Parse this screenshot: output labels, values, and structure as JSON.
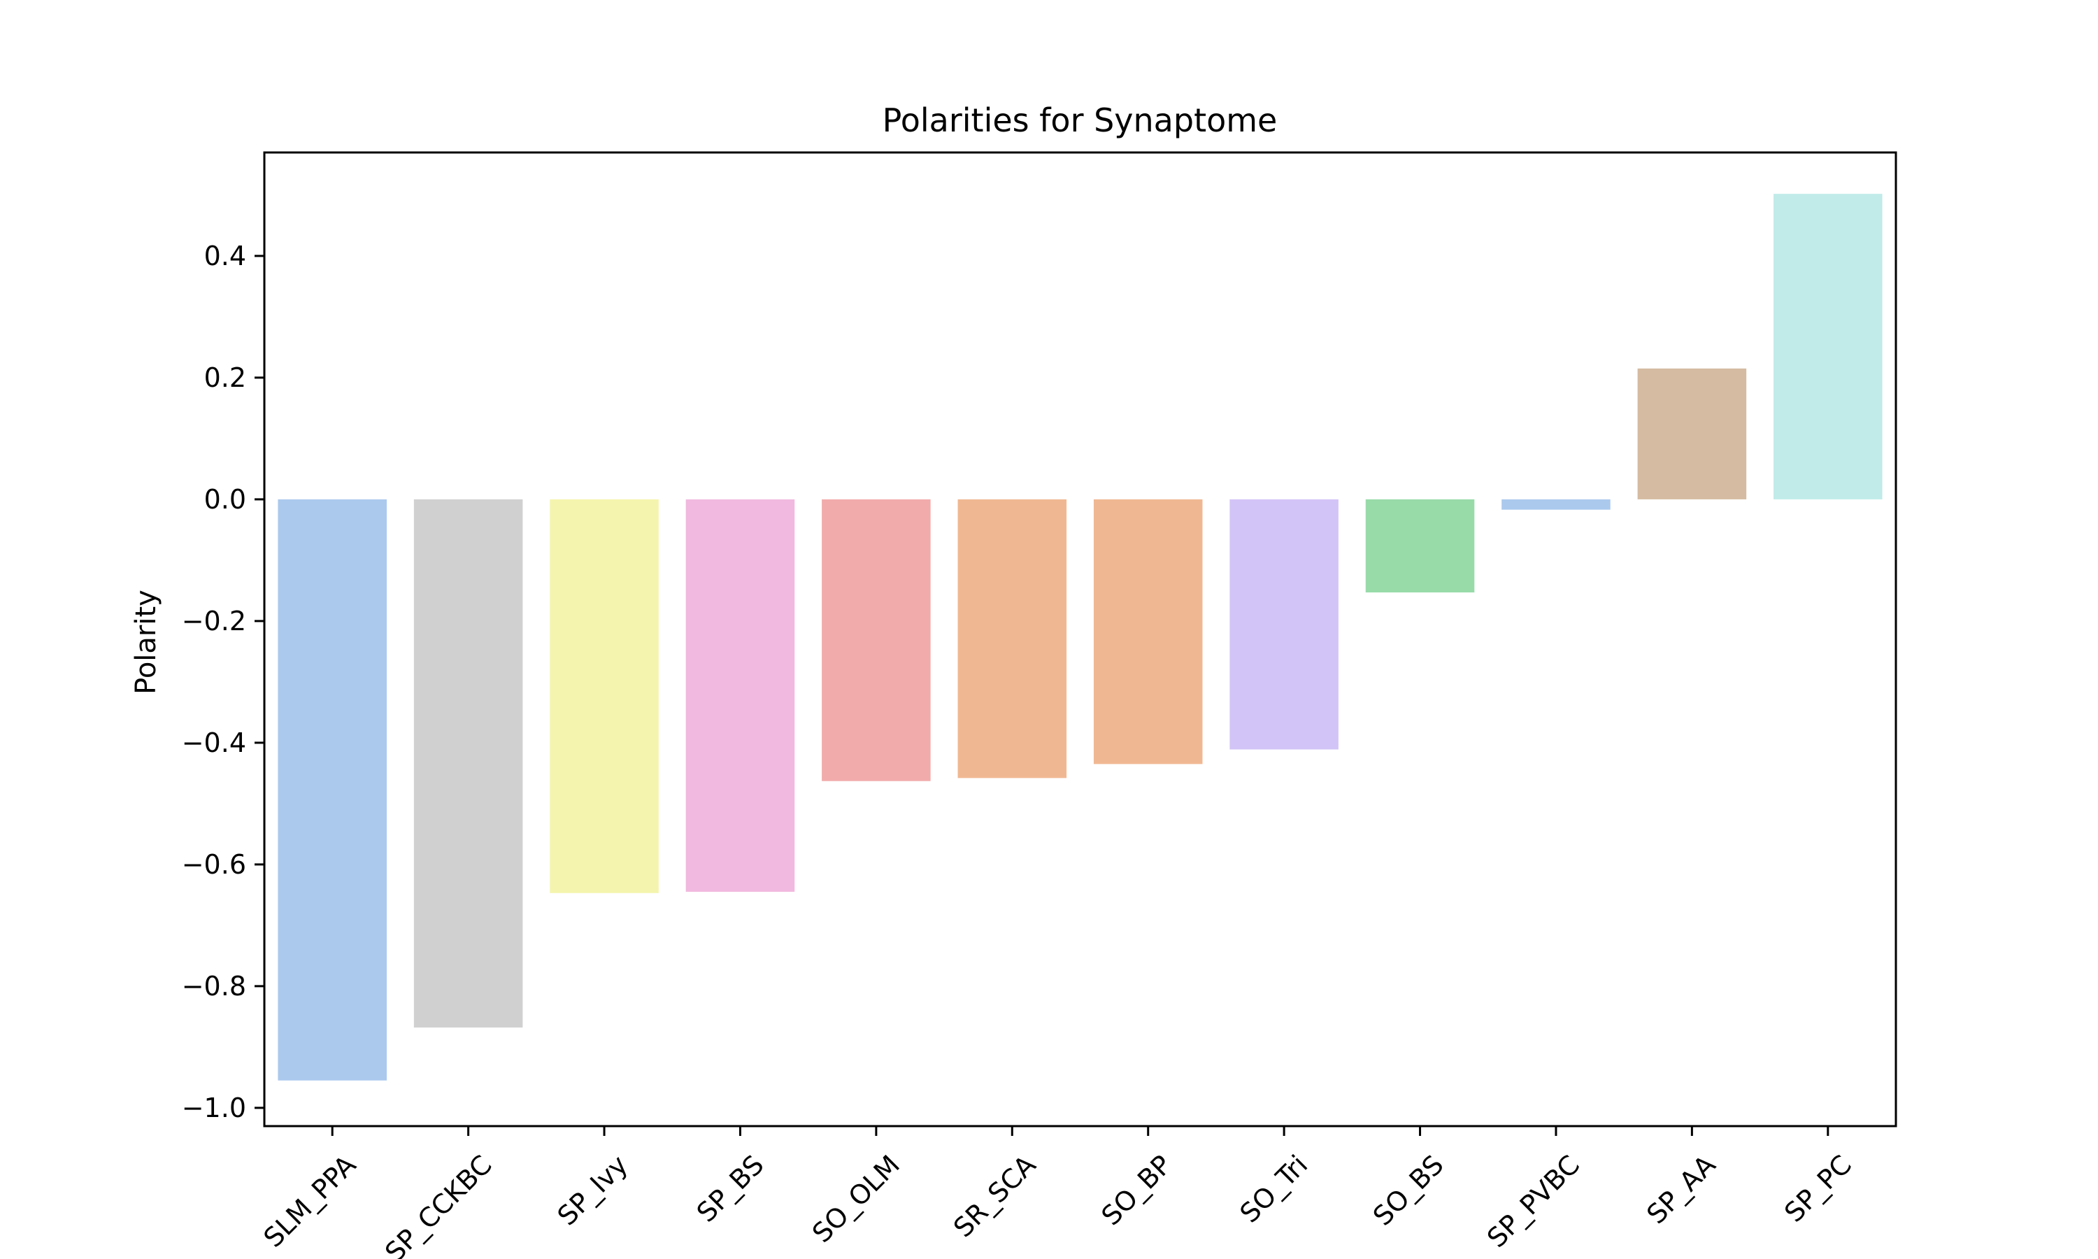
{
  "chart_data": {
    "type": "bar",
    "title": "Polarities for Synaptome",
    "xlabel": "",
    "ylabel": "Polarity",
    "categories": [
      "SLM_PPA",
      "SP_CCKBC",
      "SP_Ivy",
      "SP_BS",
      "SO_OLM",
      "SR_SCA",
      "SO_BP",
      "SO_Tri",
      "SO_BS",
      "SP_PVBC",
      "SP_AA",
      "SP_PC"
    ],
    "values": [
      -0.955,
      -0.868,
      -0.647,
      -0.645,
      -0.463,
      -0.458,
      -0.435,
      -0.411,
      -0.153,
      -0.017,
      0.215,
      0.502
    ],
    "colors": [
      "#abc9ed",
      "#d0d0d0",
      "#f4f4ae",
      "#f1b9df",
      "#f2abab",
      "#f0b892",
      "#f0b892",
      "#d3c4f7",
      "#98dba9",
      "#abc9ed",
      "#d5bba1",
      "#c0ebe8"
    ],
    "ylim": [
      -1.03,
      0.57
    ],
    "yticks": [
      -1.0,
      -0.8,
      -0.6,
      -0.4,
      -0.2,
      0.0,
      0.2,
      0.4
    ],
    "ytick_labels": [
      "−1.0",
      "−0.8",
      "−0.6",
      "−0.4",
      "−0.2",
      "0.0",
      "0.2",
      "0.4"
    ],
    "grid": false,
    "legend": "none"
  }
}
